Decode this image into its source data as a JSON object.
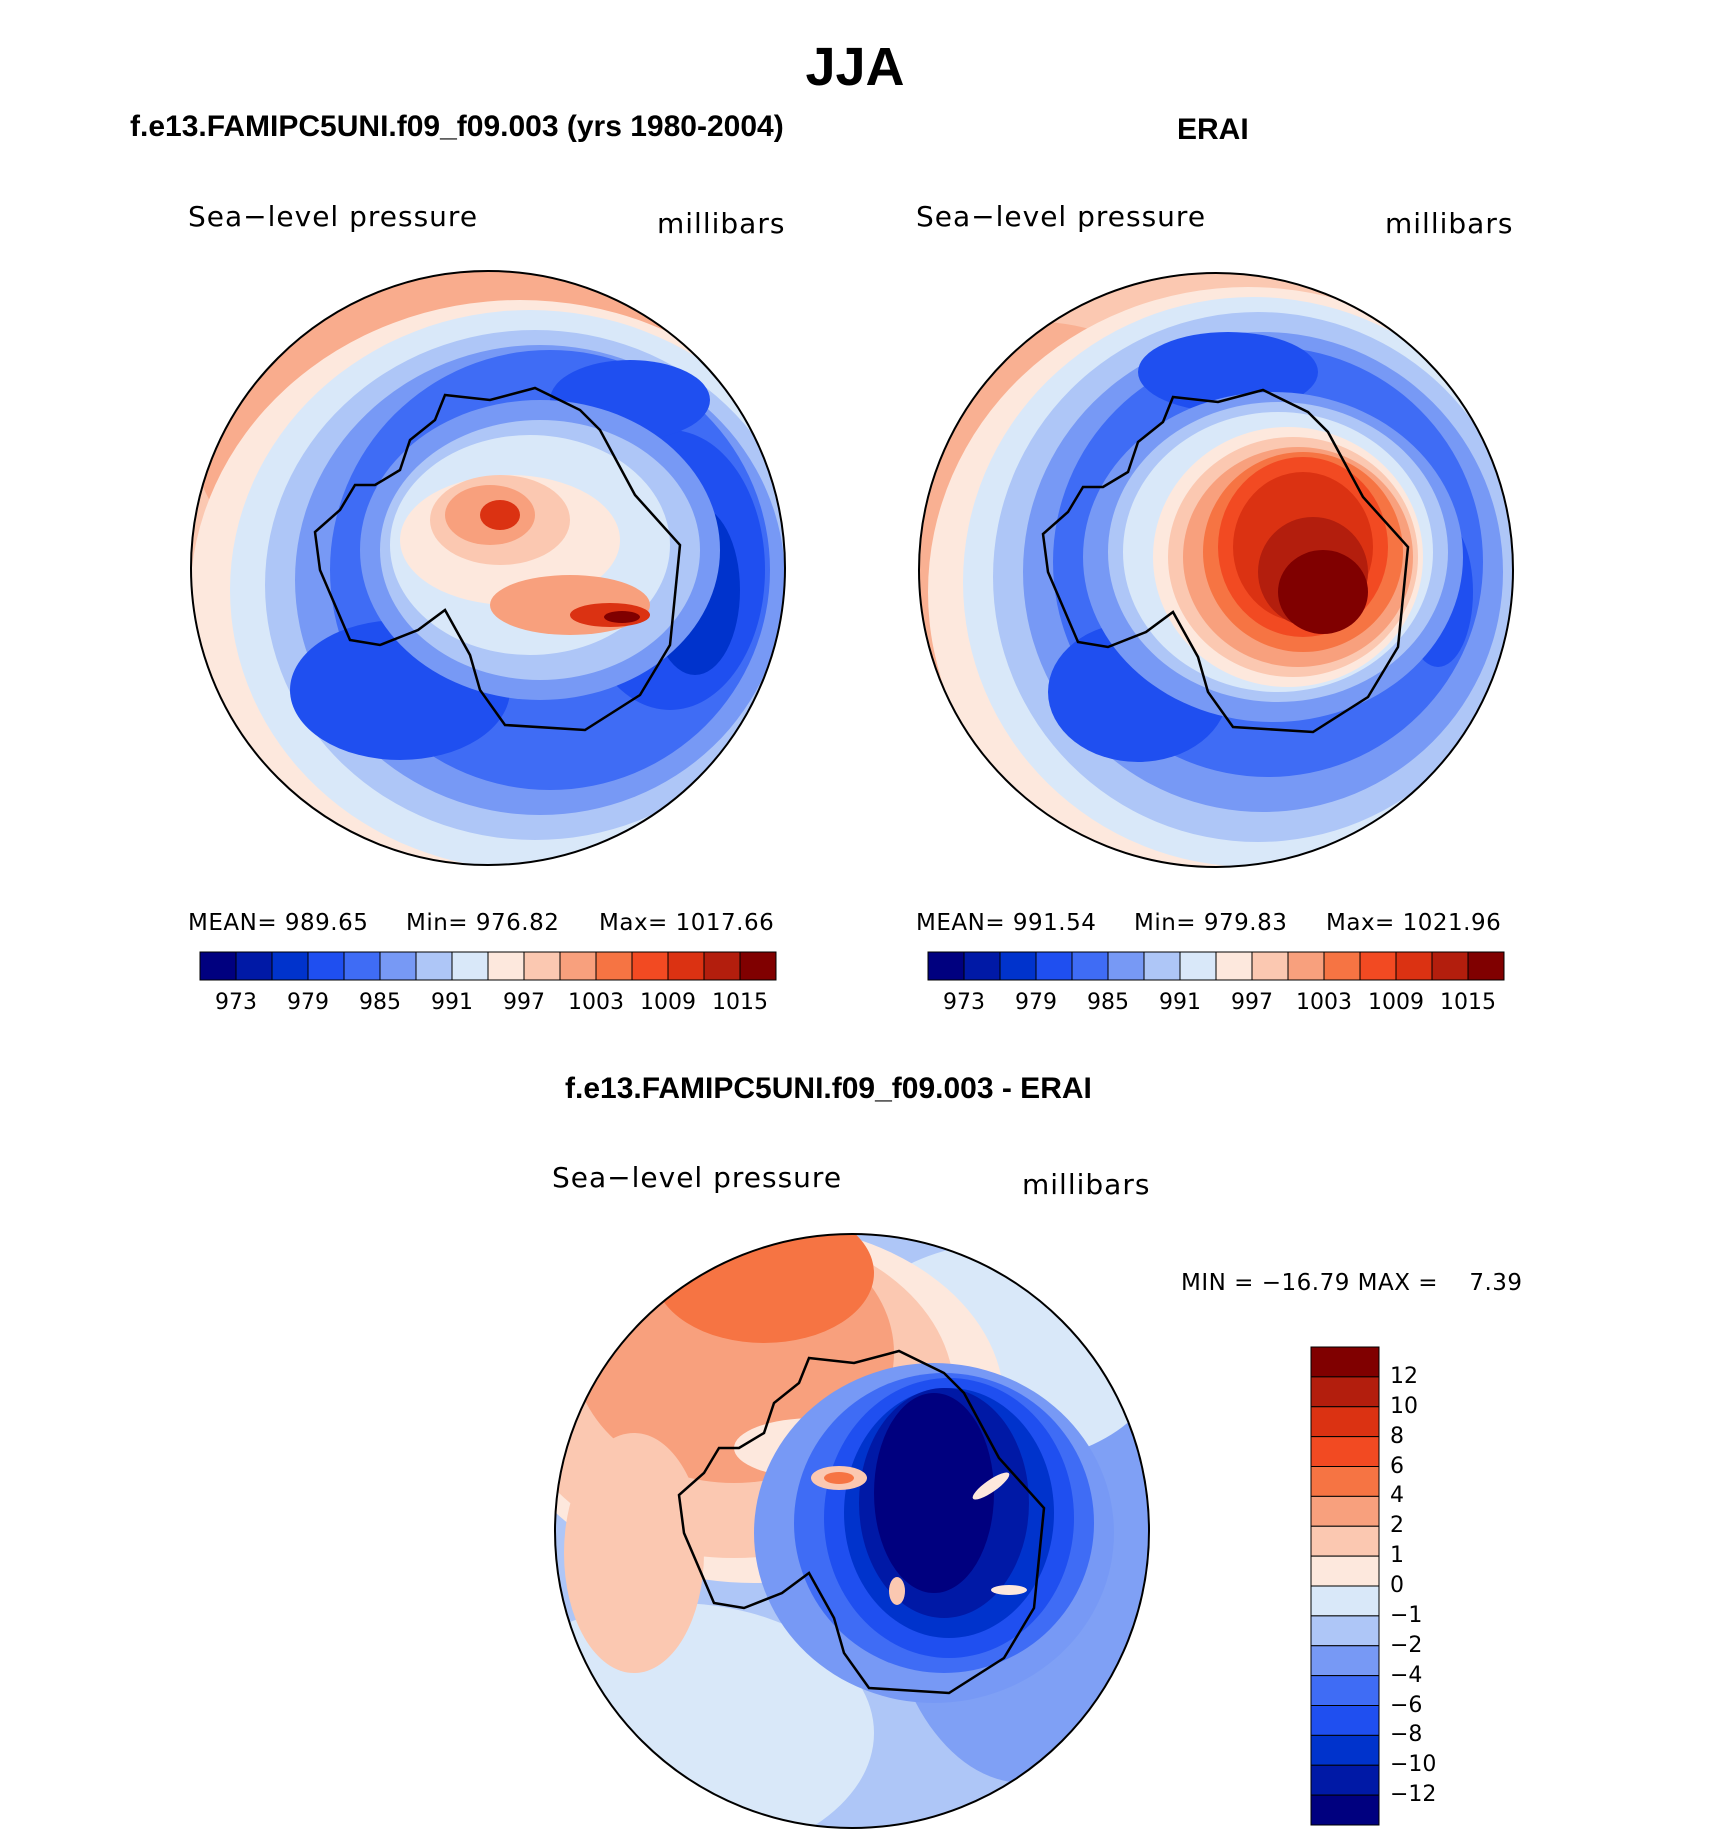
{
  "title": "JJA",
  "panels": [
    {
      "id": "model",
      "title": "f.e13.FAMIPC5UNI.f09_f09.003 (yrs 1980-2004)",
      "variable": "Sea−level pressure",
      "units": "millibars",
      "stats": {
        "mean": "MEAN= 989.65",
        "min": "Min= 976.82",
        "max": "Max= 1017.66"
      },
      "colorbar_ticks": [
        "973",
        "979",
        "985",
        "991",
        "997",
        "1003",
        "1009",
        "1015"
      ]
    },
    {
      "id": "obs",
      "title": "ERAI",
      "variable": "Sea−level pressure",
      "units": "millibars",
      "stats": {
        "mean": "MEAN= 991.54",
        "min": "Min= 979.83",
        "max": "Max= 1021.96"
      },
      "colorbar_ticks": [
        "973",
        "979",
        "985",
        "991",
        "997",
        "1003",
        "1009",
        "1015"
      ]
    },
    {
      "id": "diff",
      "title": "f.e13.FAMIPC5UNI.f09_f09.003 - ERAI",
      "variable": "Sea−level pressure",
      "units": "millibars",
      "stats": {
        "minmax": "MIN = −16.79 MAX =    7.39"
      },
      "colorbar_ticks": [
        "12",
        "10",
        "8",
        "6",
        "4",
        "2",
        "1",
        "0",
        "−1",
        "−2",
        "−4",
        "−6",
        "−8",
        "−10",
        "−12"
      ]
    }
  ],
  "colors": {
    "abs_scale": [
      "#00007f",
      "#0019a6",
      "#0033cc",
      "#1f4ff0",
      "#3f6cf5",
      "#7799f5",
      "#aec6f7",
      "#d9e8f9",
      "#fde8dd",
      "#fbc8b1",
      "#f8a07d",
      "#f67443",
      "#f24a22",
      "#db3212",
      "#b31e0d",
      "#800000"
    ],
    "diff_scale": [
      "#800000",
      "#b31e0d",
      "#db3212",
      "#f24a22",
      "#f67443",
      "#f8a07d",
      "#fbc8b1",
      "#fde8dd",
      "#d9e8f9",
      "#aec6f7",
      "#7799f5",
      "#3f6cf5",
      "#1f4ff0",
      "#0033cc",
      "#0019a6",
      "#00007f"
    ]
  }
}
